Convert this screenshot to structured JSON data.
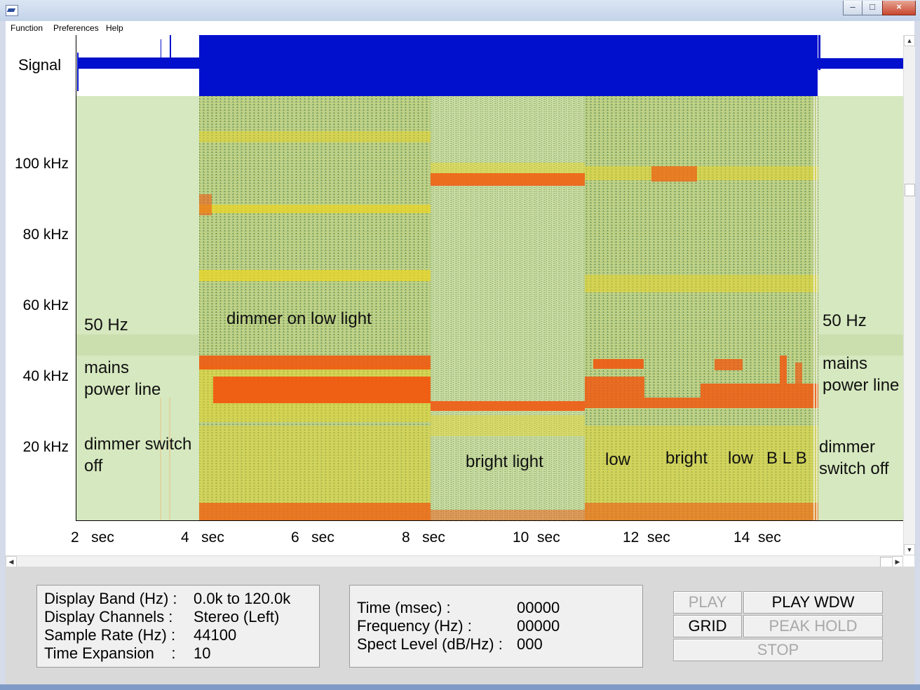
{
  "window": {
    "minimize": "–",
    "maximize": "□",
    "close": "×"
  },
  "menu": {
    "items": [
      "Function",
      "Preferences",
      "Help"
    ]
  },
  "signal": {
    "label": "Signal",
    "color": "#0010cc"
  },
  "spectrogram": {
    "y_axis": {
      "ticks": [
        "100 kHz",
        "80 kHz",
        "60 kHz",
        "40 kHz",
        "20 kHz"
      ]
    },
    "x_axis": {
      "ticks": [
        "2   sec",
        "4   sec",
        "6   sec",
        "8   sec",
        "10  sec",
        "12  sec",
        "14  sec"
      ]
    },
    "annotations": {
      "left_50hz": "50 Hz",
      "left_mains": "mains\npower line",
      "left_dimmer_off": "dimmer switch\noff",
      "dimmer_low": "dimmer on low light",
      "bright_light": "bright light",
      "low1": "low",
      "bright2": "bright",
      "low2": "low",
      "blb": "B L B",
      "right_50hz": "50 Hz",
      "right_mains": "mains\npower line",
      "right_dimmer_off": "dimmer\nswitch off"
    },
    "colors": {
      "background": "#d6e8bf",
      "noise": "#9cb96c",
      "yellow": "#e8d52a",
      "orange": "#f05a12"
    }
  },
  "info_left": {
    "rows": [
      {
        "label": "Display Band (Hz) :",
        "value": "0.0k to 120.0k"
      },
      {
        "label": "Display Channels :",
        "value": "Stereo (Left)"
      },
      {
        "label": "Sample Rate (Hz) :",
        "value": "44100"
      },
      {
        "label": "Time Expansion    :",
        "value": "10"
      }
    ]
  },
  "info_mid": {
    "rows": [
      {
        "label": "Time (msec) :",
        "value": "00000"
      },
      {
        "label": "Frequency (Hz) :",
        "value": "00000"
      },
      {
        "label": "Spect Level (dB/Hz) :",
        "value": "000"
      }
    ]
  },
  "buttons": {
    "play": "PLAY",
    "play_wdw": "PLAY WDW",
    "grid": "GRID",
    "peak_hold": "PEAK HOLD",
    "stop": "STOP"
  }
}
